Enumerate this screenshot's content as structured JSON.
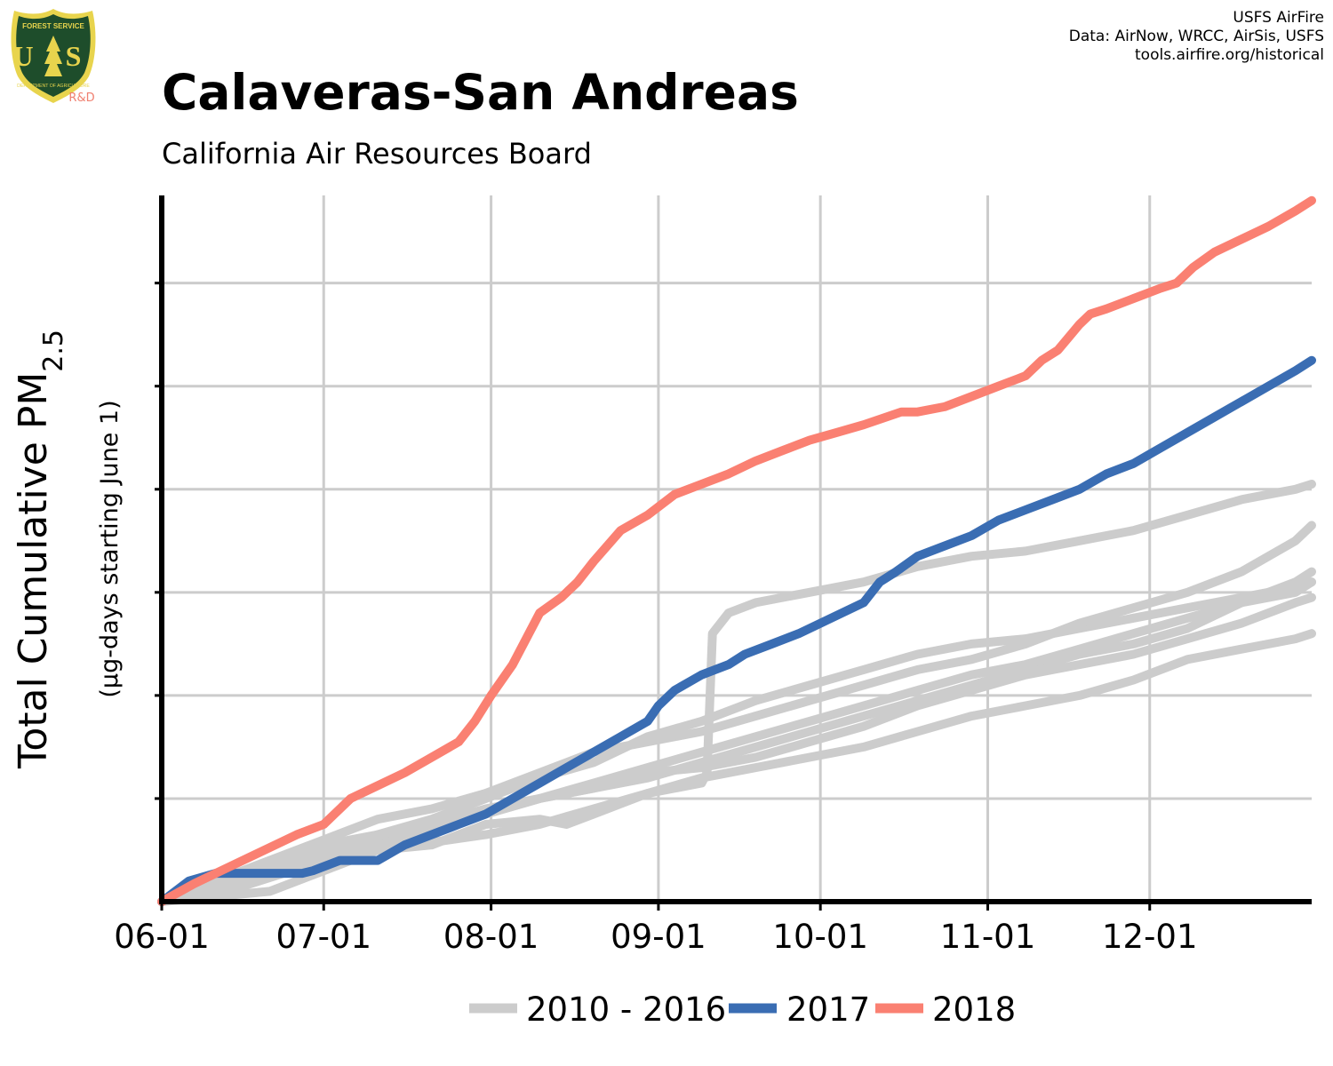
{
  "header": {
    "title": "Calaveras-San Andreas",
    "subtitle": "California Air Resources Board",
    "credits": [
      "USFS AirFire",
      "Data: AirNow, WRCC, AirSis, USFS",
      "tools.airfire.org/historical"
    ]
  },
  "logo": {
    "top_text": "FOREST SERVICE",
    "center_text": "U S",
    "bottom_text": "DEPARTMENT OF AGRICULTURE",
    "badge": "R&D",
    "icon": "forest-service-shield-icon",
    "colors": {
      "shield": "#1e4d2b",
      "border": "#e8d44d",
      "badge": "#f08070"
    }
  },
  "chart_data": {
    "type": "line",
    "title": "Calaveras-San Andreas",
    "subtitle": "California Air Resources Board",
    "ylabel": "Total Cumulative PM",
    "ylabel_sub": "2.5",
    "ylabel_note": "(µg-days starting June 1)",
    "xlabel": "",
    "x_ticks": [
      "06-01",
      "07-01",
      "08-01",
      "09-01",
      "10-01",
      "11-01",
      "12-01"
    ],
    "x_tick_days": [
      0,
      30,
      61,
      92,
      122,
      153,
      183
    ],
    "xlim": [
      0,
      213
    ],
    "ylim": [
      0,
      1370
    ],
    "y_gridlines": [
      0,
      200,
      400,
      600,
      800,
      1000,
      1200
    ],
    "y_tick_labels_shown": false,
    "grid": true,
    "legend_position": "bottom",
    "colors": {
      "historical": "#cccccc",
      "2017": "#3a6db3",
      "2018": "#fa8072",
      "grid": "#cccccc"
    },
    "series": [
      {
        "name": "2018",
        "color": "#fa8072",
        "x": [
          0,
          6,
          15,
          25,
          30,
          35,
          45,
          50,
          55,
          58,
          61,
          65,
          70,
          74,
          77,
          80,
          85,
          90,
          95,
          100,
          105,
          110,
          115,
          120,
          125,
          130,
          137,
          140,
          145,
          150,
          155,
          160,
          163,
          166,
          170,
          172,
          175,
          180,
          185,
          188,
          191,
          195,
          200,
          205,
          210,
          213
        ],
        "y": [
          0,
          35,
          80,
          130,
          150,
          200,
          250,
          280,
          310,
          350,
          400,
          460,
          560,
          590,
          620,
          660,
          720,
          750,
          790,
          810,
          830,
          855,
          875,
          895,
          910,
          925,
          950,
          950,
          960,
          980,
          1000,
          1020,
          1050,
          1070,
          1120,
          1140,
          1150,
          1170,
          1190,
          1200,
          1230,
          1260,
          1285,
          1310,
          1340,
          1360
        ]
      },
      {
        "name": "2017",
        "color": "#3a6db3",
        "x": [
          0,
          5,
          10,
          15,
          20,
          26,
          28,
          33,
          40,
          45,
          50,
          55,
          60,
          65,
          70,
          75,
          80,
          85,
          90,
          92,
          95,
          100,
          105,
          108,
          113,
          118,
          122,
          130,
          133,
          136,
          140,
          145,
          150,
          155,
          160,
          165,
          170,
          175,
          180,
          185,
          190,
          195,
          200,
          205,
          210,
          213
        ],
        "y": [
          0,
          40,
          55,
          55,
          55,
          55,
          60,
          80,
          80,
          110,
          130,
          150,
          170,
          200,
          230,
          260,
          290,
          320,
          350,
          380,
          410,
          440,
          460,
          480,
          500,
          520,
          540,
          580,
          620,
          640,
          670,
          690,
          710,
          740,
          760,
          780,
          800,
          830,
          850,
          880,
          910,
          940,
          970,
          1000,
          1030,
          1050
        ]
      },
      {
        "name": "2010 - 2016",
        "color": "#cccccc",
        "x": [
          0,
          20,
          40,
          60,
          70,
          80,
          90,
          100,
          101,
          102,
          105,
          110,
          120,
          130,
          140,
          150,
          160,
          170,
          180,
          190,
          200,
          210,
          213
        ],
        "y": [
          0,
          20,
          100,
          130,
          150,
          180,
          210,
          230,
          250,
          520,
          560,
          580,
          600,
          620,
          650,
          670,
          680,
          700,
          720,
          750,
          780,
          800,
          810
        ]
      },
      {
        "name": "2010 - 2016",
        "color": "#cccccc",
        "x": [
          0,
          15,
          30,
          40,
          50,
          60,
          70,
          80,
          90,
          100,
          110,
          120,
          130,
          140,
          150,
          160,
          170,
          180,
          190,
          200,
          210,
          213
        ],
        "y": [
          0,
          50,
          110,
          130,
          160,
          200,
          240,
          270,
          320,
          350,
          390,
          420,
          450,
          480,
          500,
          510,
          530,
          550,
          570,
          590,
          610,
          620
        ]
      },
      {
        "name": "2010 - 2016",
        "color": "#cccccc",
        "x": [
          0,
          15,
          30,
          40,
          50,
          60,
          70,
          80,
          90,
          100,
          110,
          120,
          130,
          140,
          150,
          160,
          170,
          180,
          190,
          200,
          210,
          213
        ],
        "y": [
          0,
          60,
          120,
          160,
          180,
          210,
          250,
          290,
          310,
          330,
          360,
          390,
          420,
          450,
          470,
          500,
          540,
          570,
          600,
          640,
          700,
          730
        ]
      },
      {
        "name": "2010 - 2016",
        "color": "#cccccc",
        "x": [
          0,
          15,
          30,
          40,
          50,
          60,
          70,
          80,
          90,
          100,
          110,
          120,
          130,
          140,
          150,
          160,
          170,
          180,
          190,
          200,
          210,
          213
        ],
        "y": [
          0,
          30,
          80,
          120,
          140,
          170,
          200,
          220,
          240,
          270,
          300,
          330,
          360,
          390,
          420,
          450,
          480,
          500,
          530,
          580,
          620,
          640
        ]
      },
      {
        "name": "2010 - 2016",
        "color": "#cccccc",
        "x": [
          0,
          15,
          30,
          40,
          50,
          60,
          70,
          80,
          90,
          100,
          110,
          120,
          130,
          140,
          150,
          160,
          170,
          180,
          190,
          200,
          210,
          213
        ],
        "y": [
          0,
          45,
          90,
          110,
          140,
          170,
          200,
          230,
          260,
          290,
          320,
          350,
          380,
          410,
          440,
          460,
          490,
          520,
          550,
          580,
          600,
          620
        ]
      },
      {
        "name": "2010 - 2016",
        "color": "#cccccc",
        "x": [
          0,
          15,
          30,
          40,
          50,
          60,
          70,
          75,
          80,
          90,
          100,
          110,
          120,
          130,
          140,
          150,
          160,
          170,
          180,
          190,
          200,
          210,
          213
        ],
        "y": [
          0,
          40,
          80,
          100,
          110,
          150,
          160,
          150,
          170,
          210,
          240,
          260,
          280,
          300,
          330,
          360,
          380,
          400,
          430,
          470,
          490,
          510,
          520
        ]
      },
      {
        "name": "2010 - 2016",
        "color": "#cccccc",
        "x": [
          0,
          15,
          30,
          40,
          50,
          60,
          70,
          80,
          90,
          100,
          110,
          120,
          130,
          140,
          150,
          160,
          170,
          180,
          190,
          200,
          210,
          213
        ],
        "y": [
          0,
          50,
          100,
          130,
          150,
          180,
          200,
          220,
          250,
          260,
          280,
          310,
          340,
          380,
          410,
          440,
          460,
          480,
          510,
          540,
          580,
          590
        ]
      }
    ]
  },
  "legend": [
    {
      "label": "2010 - 2016",
      "color": "#cccccc"
    },
    {
      "label": "2017",
      "color": "#3a6db3"
    },
    {
      "label": "2018",
      "color": "#fa8072"
    }
  ]
}
